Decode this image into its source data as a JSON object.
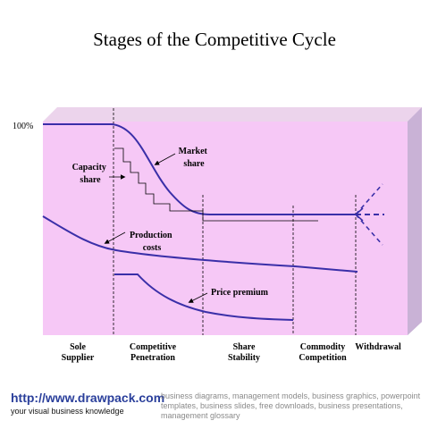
{
  "title": "Stages of the Competitive Cycle",
  "y_axis_label": "100%",
  "annotations": {
    "market_share": [
      "Market",
      "share"
    ],
    "capacity_share": [
      "Capacity",
      "share"
    ],
    "production_costs": [
      "Production",
      "costs"
    ],
    "price_premium": "Price premium"
  },
  "stages": [
    {
      "line1": "Sole",
      "line2": "Supplier"
    },
    {
      "line1": "Competitive",
      "line2": "Penetration"
    },
    {
      "line1": "Share",
      "line2": "Stability"
    },
    {
      "line1": "Commodity",
      "line2": "Competition"
    },
    {
      "line1": "Withdrawal",
      "line2": ""
    }
  ],
  "colors": {
    "panel_fill": "#f6c8f6",
    "panel_shadow": "#b8a8c8",
    "curve": "#3a2fa8",
    "footer_link": "#2a3f9b"
  },
  "footer": {
    "url": "http://www.drawpack.com",
    "tagline": "your visual business knowledge",
    "keywords": "business diagrams, management models, business graphics, powerpoint templates, business slides, free downloads, business presentations, management glossary"
  }
}
